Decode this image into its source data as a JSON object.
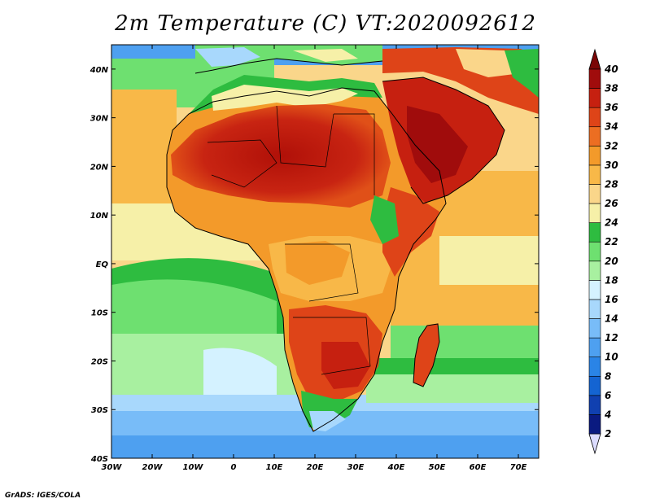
{
  "title": "2m Temperature (C) VT:2020092612",
  "credit": "GrADS: IGES/COLA",
  "map": {
    "lon_range": [
      -30,
      75
    ],
    "lat_range": [
      -40,
      45
    ],
    "lon_ticks": [
      {
        "value": -30,
        "label": "30W"
      },
      {
        "value": -20,
        "label": "20W"
      },
      {
        "value": -10,
        "label": "10W"
      },
      {
        "value": 0,
        "label": "0"
      },
      {
        "value": 10,
        "label": "10E"
      },
      {
        "value": 20,
        "label": "20E"
      },
      {
        "value": 30,
        "label": "30E"
      },
      {
        "value": 40,
        "label": "40E"
      },
      {
        "value": 50,
        "label": "50E"
      },
      {
        "value": 60,
        "label": "60E"
      },
      {
        "value": 70,
        "label": "70E"
      }
    ],
    "lat_ticks": [
      {
        "value": 40,
        "label": "40N"
      },
      {
        "value": 30,
        "label": "30N"
      },
      {
        "value": 20,
        "label": "20N"
      },
      {
        "value": 10,
        "label": "10N"
      },
      {
        "value": 0,
        "label": "EQ"
      },
      {
        "value": -10,
        "label": "10S"
      },
      {
        "value": -20,
        "label": "20S"
      },
      {
        "value": -30,
        "label": "30S"
      },
      {
        "value": -40,
        "label": "40S"
      }
    ]
  },
  "colorbar": {
    "labels": [
      "2",
      "4",
      "6",
      "8",
      "10",
      "12",
      "14",
      "16",
      "18",
      "20",
      "22",
      "24",
      "26",
      "28",
      "30",
      "32",
      "34",
      "36",
      "38",
      "40"
    ],
    "colors": [
      "#dcdcff",
      "#0a1a80",
      "#1040b0",
      "#1464d2",
      "#2a84e6",
      "#4ea0f0",
      "#78bcf8",
      "#a8d8fc",
      "#d4f2ff",
      "#a8f0a0",
      "#6ee070",
      "#2ebc40",
      "#f6f0a8",
      "#fad68a",
      "#f8b848",
      "#f39a2a",
      "#ec6e22",
      "#de4418",
      "#c62010",
      "#a00c0c",
      "#7a0606"
    ]
  }
}
